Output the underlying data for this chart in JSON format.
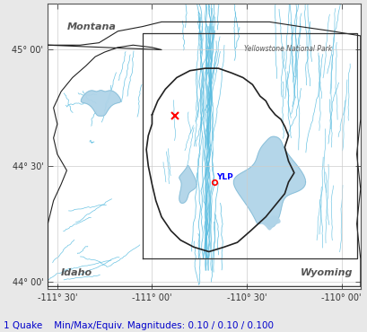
{
  "xlim": [
    -111.55,
    -109.9
  ],
  "ylim": [
    43.97,
    45.2
  ],
  "xticks": [
    -111.5,
    -111.0,
    -110.5,
    -110.0
  ],
  "yticks": [
    44.0,
    44.5,
    45.0
  ],
  "bg_color": "#ffffff",
  "fig_bg_color": "#e8e8e8",
  "river_color": "#5bbde0",
  "lake_color": "#b0d4e8",
  "lake_edge_color": "#7ab8d4",
  "border_color": "#222222",
  "box_color": "#333333",
  "label_color": "#555555",
  "grid_color": "#cccccc",
  "quake_x": -110.88,
  "quake_y": 44.715,
  "ylp_x": -110.67,
  "ylp_y": 44.43,
  "status_text": "1 Quake    Min/Max/Equiv. Magnitudes: 0.10 / 0.10 / 0.100",
  "status_color": "#0000cc",
  "montana_label": "Montana",
  "idaho_label": "Idaho",
  "wyoming_label": "Wyoming",
  "ynp_label": "Yellowstone National Park",
  "tick_label_color": "#333333"
}
